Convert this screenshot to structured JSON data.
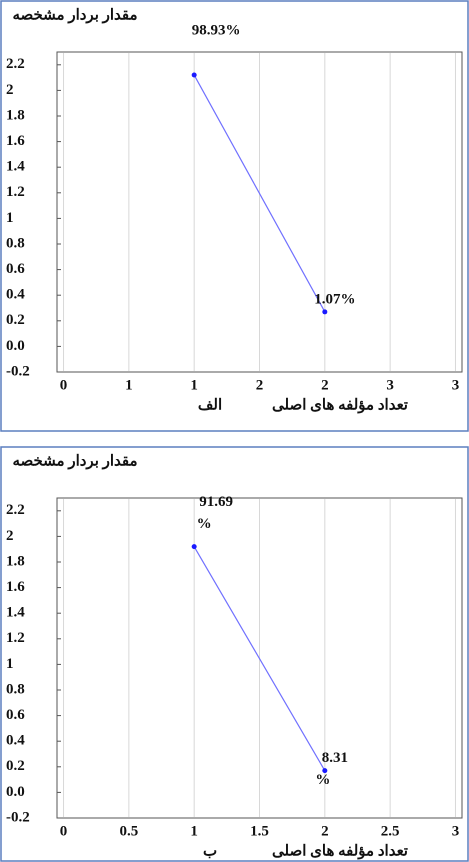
{
  "chart_data": [
    {
      "type": "line",
      "title": "مقدار بردار مشخصه",
      "x_label": "تعداد مؤلفه های اصلی",
      "panel_label": "الف",
      "x": [
        1,
        2
      ],
      "values": [
        2.12,
        0.27
      ],
      "point_color": "#1a1aff",
      "line_color": "#7070ff",
      "annotations": [
        [
          "98.93%"
        ],
        [
          "1.07%"
        ]
      ],
      "xlim": [
        -0.05,
        3.05
      ],
      "xticks": [
        0,
        {
          "value": 0.5,
          "label": "1"
        },
        1,
        {
          "value": 1.5,
          "label": "2"
        },
        2,
        {
          "value": 2.5,
          "label": "3"
        },
        3
      ],
      "ylim": [
        -0.2,
        2.3
      ],
      "yticks": [
        2.2,
        2,
        1.8,
        1.6,
        1.4,
        1.2,
        1,
        0.8,
        0.6,
        0.4,
        0.2,
        {
          "value": 0,
          "label": "0.0"
        },
        -0.2
      ],
      "grid": "x"
    },
    {
      "type": "line",
      "title": "مقدار بردار مشخصه",
      "x_label": "تعداد مؤلفه های اصلی",
      "panel_label": "ب",
      "x": [
        1,
        2
      ],
      "values": [
        1.92,
        0.17
      ],
      "point_color": "#1a1aff",
      "line_color": "#7070ff",
      "annotations": [
        [
          "91.69",
          "%"
        ],
        [
          "8.31",
          "%"
        ]
      ],
      "xlim": [
        -0.05,
        3.05
      ],
      "xticks": [
        0,
        0.5,
        1,
        1.5,
        2,
        2.5,
        3
      ],
      "ylim": [
        -0.2,
        2.3
      ],
      "yticks": [
        2.2,
        2,
        1.8,
        1.6,
        1.4,
        1.2,
        1,
        0.8,
        0.6,
        0.4,
        0.2,
        {
          "value": 0,
          "label": "0.0"
        },
        -0.2
      ],
      "grid": "x"
    }
  ]
}
